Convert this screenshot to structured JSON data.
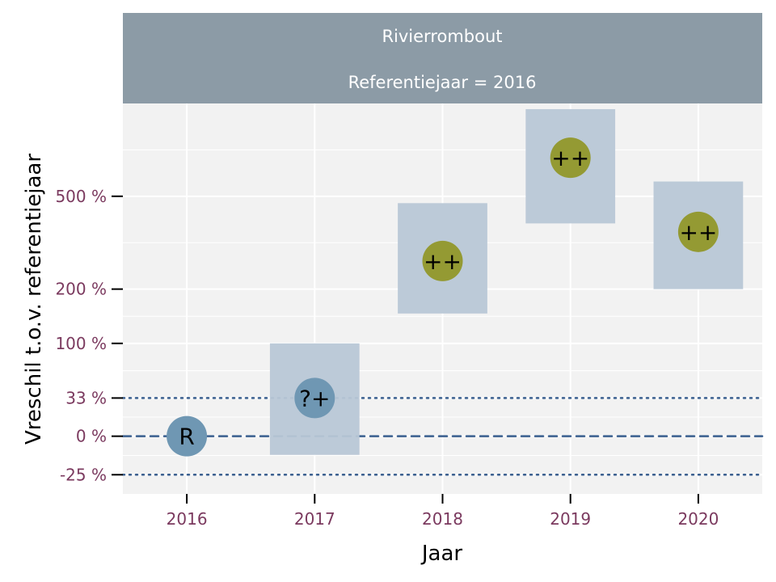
{
  "chart_data": {
    "type": "scatter",
    "title": "Rivierrombout",
    "subtitle": "Referentiejaar = 2016",
    "xlabel": "Jaar",
    "ylabel": "Vreschil t.o.v. referentiejaar",
    "categories": [
      "2016",
      "2017",
      "2018",
      "2019",
      "2020"
    ],
    "y_scale": "log-ratio",
    "ylim": [
      -35,
      1100
    ],
    "y_ticks": [
      {
        "value": -25,
        "label": "-25 %"
      },
      {
        "value": 0,
        "label": "0 %"
      },
      {
        "value": 33,
        "label": "33 %"
      },
      {
        "value": 100,
        "label": "100 %"
      },
      {
        "value": 200,
        "label": "200 %"
      },
      {
        "value": 500,
        "label": "500 %"
      }
    ],
    "reference_lines": [
      {
        "value": 0,
        "style": "dashed"
      },
      {
        "value": 33,
        "style": "dotted"
      },
      {
        "value": -25,
        "style": "dotted"
      }
    ],
    "points": [
      {
        "x": "2016",
        "estimate": 0,
        "lower": null,
        "upper": null,
        "label": "R",
        "category": "reference"
      },
      {
        "x": "2017",
        "estimate": 33,
        "lower": -13,
        "upper": 100,
        "label": "?+",
        "category": "uncertain"
      },
      {
        "x": "2018",
        "estimate": 270,
        "lower": 150,
        "upper": 470,
        "label": "++",
        "category": "strong-increase"
      },
      {
        "x": "2019",
        "estimate": 700,
        "lower": 390,
        "upper": 1050,
        "label": "++",
        "category": "strong-increase"
      },
      {
        "x": "2020",
        "estimate": 360,
        "lower": 200,
        "upper": 570,
        "label": "++",
        "category": "strong-increase"
      }
    ],
    "grid": true,
    "legend": "none"
  },
  "colors": {
    "strip_bg": "#8c9ba6",
    "panel_bg": "#f2f2f2",
    "grid": "#ffffff",
    "ci_box": "#b8c7d6",
    "reference_point": "#6f97b3",
    "strong_increase_point": "#949a33",
    "ref_line": "#3a5f8f",
    "tick_text": "#7b3a5f"
  }
}
